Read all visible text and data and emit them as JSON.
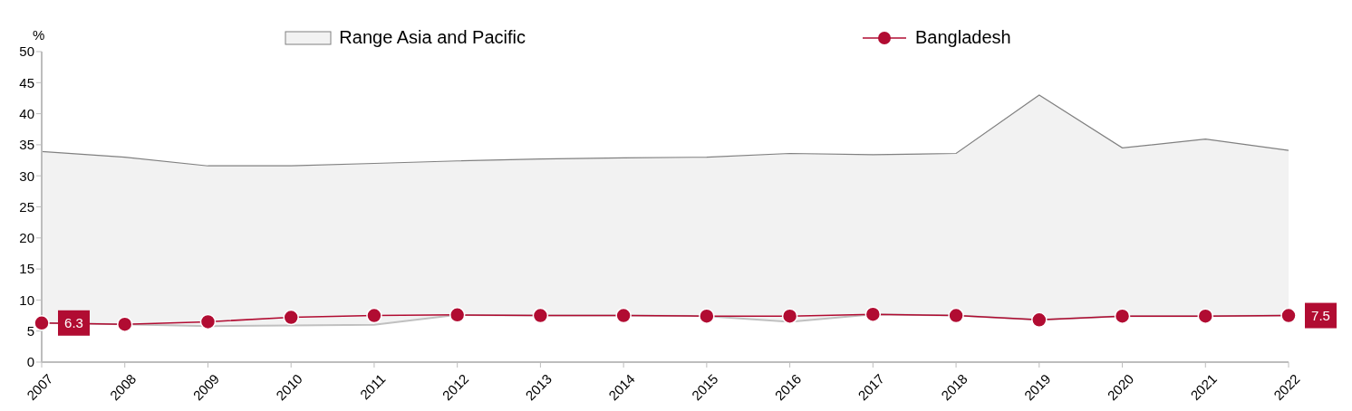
{
  "chart_data": {
    "type": "line",
    "ylabel": "%",
    "categories": [
      "2007",
      "2008",
      "2009",
      "2010",
      "2011",
      "2012",
      "2013",
      "2014",
      "2015",
      "2016",
      "2017",
      "2018",
      "2019",
      "2020",
      "2021",
      "2022"
    ],
    "series": [
      {
        "name": "Range Asia and Pacific",
        "type": "area",
        "color": "#f2f2f2",
        "values": [
          33.9,
          33.0,
          31.6,
          31.6,
          32.0,
          32.4,
          32.7,
          32.9,
          33.0,
          33.6,
          33.4,
          33.6,
          43.0,
          34.5,
          35.9,
          34.1
        ]
      },
      {
        "type": "area",
        "color": "#c0c0c0",
        "values": [
          6.3,
          6.1,
          5.8,
          5.9,
          6.0,
          7.6,
          7.5,
          7.5,
          7.4,
          6.5,
          7.7,
          7.5,
          6.8,
          7.4,
          7.4,
          7.5
        ]
      },
      {
        "name": "Bangladesh",
        "marker": "circle",
        "color": "#b10c32",
        "values": [
          6.3,
          6.1,
          6.5,
          7.2,
          7.5,
          7.6,
          7.5,
          7.5,
          7.4,
          7.4,
          7.7,
          7.5,
          6.8,
          7.4,
          7.4,
          7.5
        ],
        "value_labels": [
          "6.3",
          null,
          null,
          null,
          null,
          null,
          null,
          null,
          null,
          null,
          null,
          null,
          null,
          null,
          null,
          "7.5"
        ]
      }
    ],
    "ylim": [
      0,
      50
    ],
    "yticks": [
      0,
      5,
      10,
      15,
      20,
      25,
      30,
      35,
      40,
      45,
      50
    ],
    "grid": false,
    "legend": "top",
    "line_style": "solid"
  }
}
